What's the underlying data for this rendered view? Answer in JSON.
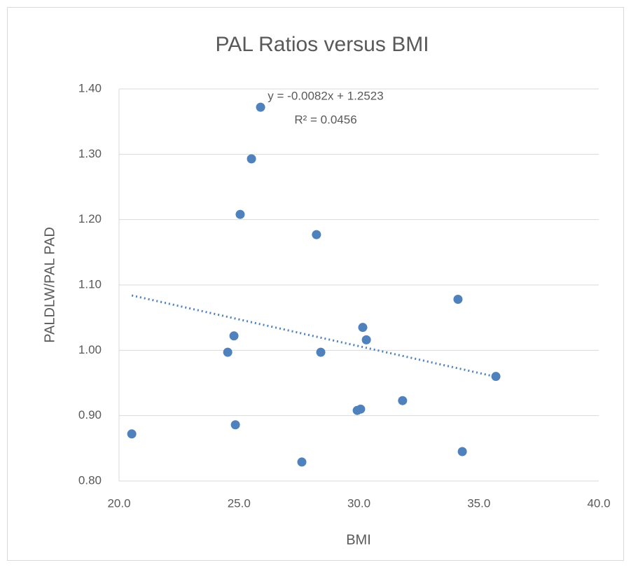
{
  "chart_data": {
    "type": "scatter",
    "title": "PAL Ratios versus BMI",
    "xlabel": "BMI",
    "ylabel": "PALDLW/PAL PAD",
    "x": [
      20.53,
      25.9,
      25.52,
      25.05,
      28.23,
      34.13,
      24.79,
      24.53,
      28.41,
      30.16,
      30.31,
      35.71,
      31.82,
      29.93,
      30.07,
      24.85,
      27.62,
      34.31
    ],
    "values": [
      0.872,
      1.372,
      1.293,
      1.208,
      1.177,
      1.078,
      1.022,
      0.997,
      0.997,
      1.035,
      1.016,
      0.96,
      0.923,
      0.908,
      0.91,
      0.886,
      0.829,
      0.845
    ],
    "color": "#4f81bd",
    "xlim": [
      20,
      40
    ],
    "xticks": [
      {
        "value": 20,
        "label": "20.0"
      },
      {
        "value": 25,
        "label": "25.0"
      },
      {
        "value": 30,
        "label": "30.0"
      },
      {
        "value": 35,
        "label": "35.0"
      },
      {
        "value": 40,
        "label": "40.0"
      }
    ],
    "ylim": [
      0.8,
      1.4
    ],
    "yticks": [
      {
        "value": 0.8,
        "label": "0.80"
      },
      {
        "value": 0.9,
        "label": "0.90"
      },
      {
        "value": 1.0,
        "label": "1.00"
      },
      {
        "value": 1.1,
        "label": "1.10"
      },
      {
        "value": 1.2,
        "label": "1.20"
      },
      {
        "value": 1.3,
        "label": "1.30"
      },
      {
        "value": 1.4,
        "label": "1.40"
      }
    ],
    "grid": true,
    "trendline": {
      "equation": "y = -0.0082x + 1.2523",
      "r_squared": "R² = 0.0456",
      "slope": -0.0082,
      "intercept": 1.2523
    }
  }
}
